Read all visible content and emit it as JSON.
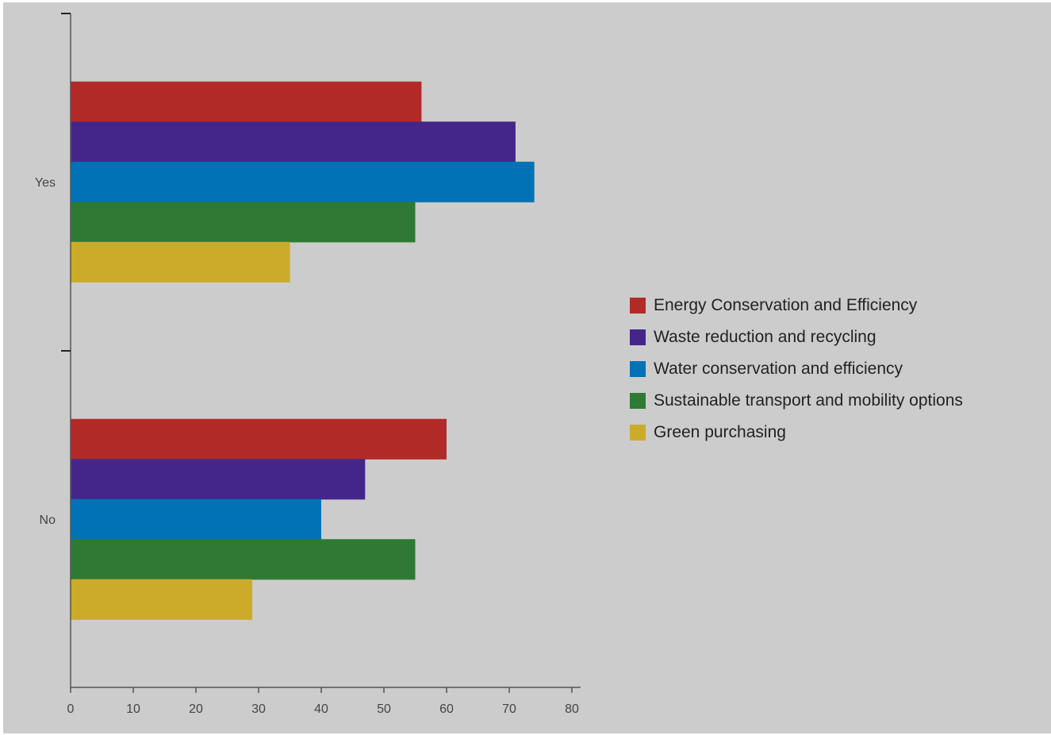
{
  "chart_data": {
    "type": "bar",
    "orientation": "horizontal",
    "categories": [
      "Yes",
      "No"
    ],
    "series": [
      {
        "name": "Energy Conservation and Efficiency",
        "color": "#b22a28",
        "values": [
          56,
          60
        ]
      },
      {
        "name": "Waste reduction and recycling",
        "color": "#44268a",
        "values": [
          71,
          47
        ]
      },
      {
        "name": "Water conservation and efficiency",
        "color": "#0072b5",
        "values": [
          74,
          40
        ]
      },
      {
        "name": "Sustainable transport and mobility options",
        "color": "#2e7a34",
        "values": [
          55,
          55
        ]
      },
      {
        "name": "Green purchasing",
        "color": "#ccab2a",
        "values": [
          35,
          29
        ]
      }
    ],
    "xlim": [
      0,
      80
    ],
    "xticks": [
      "0",
      "10",
      "20",
      "30",
      "40",
      "50",
      "60",
      "70",
      "80"
    ],
    "title": "",
    "xlabel": "",
    "ylabel": "",
    "grid": false,
    "legend_position": "right",
    "background_color": "#cccccc"
  }
}
